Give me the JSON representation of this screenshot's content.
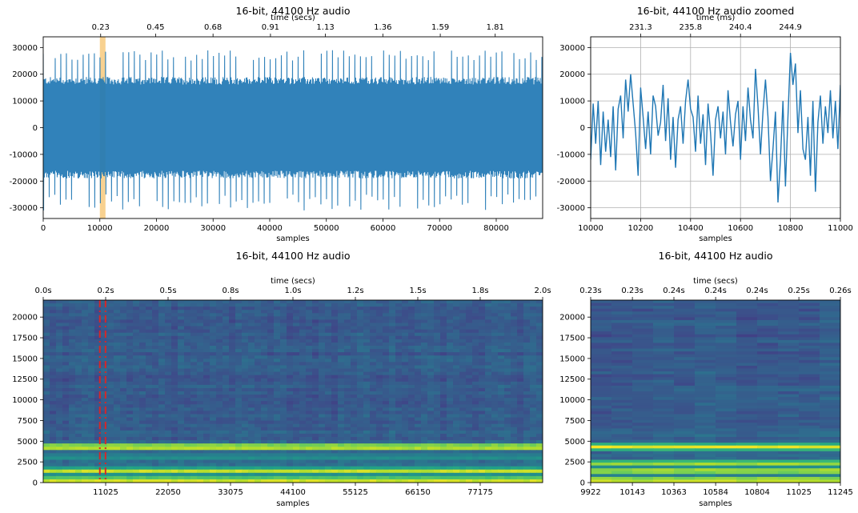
{
  "chart_data": [
    {
      "id": "waveform",
      "type": "line",
      "title": "16-bit, 44100 Hz audio",
      "xlabel": "samples",
      "x2label": "time (secs)",
      "ylabel": "",
      "xlim": [
        0,
        88200
      ],
      "ylim": [
        -34000,
        34000
      ],
      "x_ticks": [
        0,
        10000,
        20000,
        30000,
        40000,
        50000,
        60000,
        70000,
        80000
      ],
      "x_tick_labels": [
        "0",
        "10000",
        "20000",
        "30000",
        "40000",
        "50000",
        "60000",
        "70000",
        "80000"
      ],
      "y_ticks": [
        -30000,
        -20000,
        -10000,
        0,
        10000,
        20000,
        30000
      ],
      "y_tick_labels": [
        "-30000",
        "-20000",
        "-10000",
        "0",
        "10000",
        "20000",
        "30000"
      ],
      "x2_tick_positions": [
        10143,
        19845,
        29988,
        40131,
        49833,
        59976,
        70119,
        79821
      ],
      "x2_tick_labels": [
        "0.23",
        "0.45",
        "0.68",
        "0.91",
        "1.13",
        "1.36",
        "1.59",
        "1.81"
      ],
      "highlight_span": [
        10000,
        11000
      ],
      "highlight_color": "#f5c26b",
      "envelope": {
        "upper_typical": 19000,
        "upper_peak": 29000,
        "lower_typical": -19000,
        "lower_peak": -31000,
        "pulse_period_samples": 1000
      },
      "line_color": "#1f77b4",
      "grid": false
    },
    {
      "id": "waveform-zoom",
      "type": "line",
      "title": "16-bit, 44100 Hz audio zoomed",
      "xlabel": "samples",
      "x2label": "time (ms)",
      "xlim": [
        10000,
        11000
      ],
      "ylim": [
        -34000,
        34000
      ],
      "x_ticks": [
        10000,
        10200,
        10400,
        10600,
        10800,
        11000
      ],
      "x_tick_labels": [
        "10000",
        "10200",
        "10400",
        "10600",
        "10800",
        "11000"
      ],
      "y_ticks": [
        -30000,
        -20000,
        -10000,
        0,
        10000,
        20000,
        30000
      ],
      "y_tick_labels": [
        "-30000",
        "-20000",
        "-10000",
        "0",
        "10000",
        "20000",
        "30000"
      ],
      "x2_tick_positions": [
        10200,
        10400,
        10600,
        10800
      ],
      "x2_tick_labels": [
        "231.3",
        "235.8",
        "240.4",
        "244.9"
      ],
      "line_color": "#1f77b4",
      "grid": true,
      "series": [
        {
          "x": [
            10000,
            10010,
            10020,
            10030,
            10040,
            10050,
            10060,
            10070,
            10080,
            10090,
            10100,
            10110,
            10120,
            10130,
            10140,
            10150,
            10160,
            10170,
            10180,
            10190,
            10200,
            10210,
            10220,
            10230,
            10240,
            10250,
            10260,
            10270,
            10280,
            10290,
            10300,
            10310,
            10320,
            10330,
            10340,
            10350,
            10360,
            10370,
            10380,
            10390,
            10400,
            10410,
            10420,
            10430,
            10440,
            10450,
            10460,
            10470,
            10480,
            10490,
            10500,
            10510,
            10520,
            10530,
            10540,
            10550,
            10560,
            10570,
            10580,
            10590,
            10600,
            10610,
            10620,
            10630,
            10640,
            10650,
            10660,
            10670,
            10680,
            10690,
            10700,
            10710,
            10720,
            10730,
            10740,
            10750,
            10760,
            10770,
            10780,
            10790,
            10800,
            10810,
            10820,
            10830,
            10840,
            10850,
            10860,
            10870,
            10880,
            10890,
            10900,
            10910,
            10920,
            10930,
            10940,
            10950,
            10960,
            10970,
            10980,
            10990,
            11000
          ],
          "y": [
            -12000,
            9000,
            -6000,
            10000,
            -14000,
            6000,
            -9000,
            3000,
            -11000,
            8000,
            -16000,
            7000,
            12000,
            -4000,
            18000,
            6000,
            20000,
            9000,
            -2000,
            -18000,
            15000,
            4000,
            -8000,
            6000,
            -10000,
            12000,
            8000,
            -3000,
            2000,
            16000,
            -5000,
            11000,
            -12000,
            4000,
            -15000,
            3000,
            8000,
            -6000,
            10000,
            18000,
            7000,
            4000,
            -9000,
            12000,
            -6000,
            5000,
            -14000,
            9000,
            -2000,
            -18000,
            3000,
            8000,
            -4000,
            6000,
            -10000,
            14000,
            2000,
            -7000,
            5000,
            10000,
            -12000,
            8000,
            -5000,
            15000,
            3000,
            -4000,
            22000,
            8000,
            -10000,
            6000,
            18000,
            4000,
            -20000,
            -8000,
            6000,
            -28000,
            -12000,
            10000,
            -22000,
            4000,
            28000,
            16000,
            24000,
            -2000,
            14000,
            -8000,
            -12000,
            4000,
            -18000,
            10000,
            -24000,
            2000,
            12000,
            -6000,
            8000,
            -2000,
            14000,
            -4000,
            10000,
            -8000,
            16000
          ]
        }
      ]
    },
    {
      "id": "spectrogram",
      "type": "heatmap",
      "title": "16-bit, 44100 Hz audio",
      "xlabel": "samples",
      "x2label": "time (secs)",
      "xlim": [
        0,
        88200
      ],
      "ylim": [
        0,
        22050
      ],
      "x_ticks": [
        11025,
        22050,
        33075,
        44100,
        55125,
        66150,
        77175
      ],
      "x_tick_labels": [
        "11025",
        "22050",
        "33075",
        "44100",
        "55125",
        "66150",
        "77175"
      ],
      "y_ticks": [
        0,
        2500,
        5000,
        7500,
        10000,
        12500,
        15000,
        17500,
        20000
      ],
      "y_tick_labels": [
        "0",
        "2500",
        "5000",
        "7500",
        "10000",
        "12500",
        "15000",
        "17500",
        "20000"
      ],
      "x2_tick_positions": [
        0,
        11025,
        22050,
        33075,
        44100,
        55125,
        66150,
        77175,
        88200
      ],
      "x2_tick_labels": [
        "0.0s",
        "0.2s",
        "0.5s",
        "0.8s",
        "1.0s",
        "1.2s",
        "1.5s",
        "1.8s",
        "2.0s"
      ],
      "markers": [
        10000,
        11000
      ],
      "marker_color": "#d62728",
      "bands": [
        {
          "freq": 300,
          "level": 1.0
        },
        {
          "freq": 1400,
          "level": 0.95
        },
        {
          "freq": 3100,
          "level": 0.55
        },
        {
          "freq": 4300,
          "level": 1.0
        }
      ],
      "colormap": "viridis"
    },
    {
      "id": "spectrogram-zoom",
      "type": "heatmap",
      "title": "16-bit, 44100 Hz audio",
      "xlabel": "samples",
      "x2label": "time (secs)",
      "xlim": [
        9922,
        11245
      ],
      "ylim": [
        0,
        22050
      ],
      "x_ticks": [
        9922,
        10143,
        10363,
        10584,
        10804,
        11025,
        11245
      ],
      "x_tick_labels": [
        "9922",
        "10143",
        "10363",
        "10584",
        "10804",
        "11025",
        "11245"
      ],
      "y_ticks": [
        0,
        2500,
        5000,
        7500,
        10000,
        12500,
        15000,
        17500,
        20000
      ],
      "y_tick_labels": [
        "0",
        "2500",
        "5000",
        "7500",
        "10000",
        "12500",
        "15000",
        "17500",
        "20000"
      ],
      "x2_tick_positions": [
        9922,
        10143,
        10363,
        10584,
        10804,
        11025,
        11245
      ],
      "x2_tick_labels": [
        "0.23s",
        "0.23s",
        "0.24s",
        "0.24s",
        "0.24s",
        "0.25s",
        "0.26s"
      ],
      "bands": [
        {
          "freq": 300,
          "level": 1.0
        },
        {
          "freq": 1400,
          "level": 0.95
        },
        {
          "freq": 2300,
          "level": 0.9
        },
        {
          "freq": 4300,
          "level": 1.0
        }
      ],
      "colormap": "viridis"
    }
  ]
}
